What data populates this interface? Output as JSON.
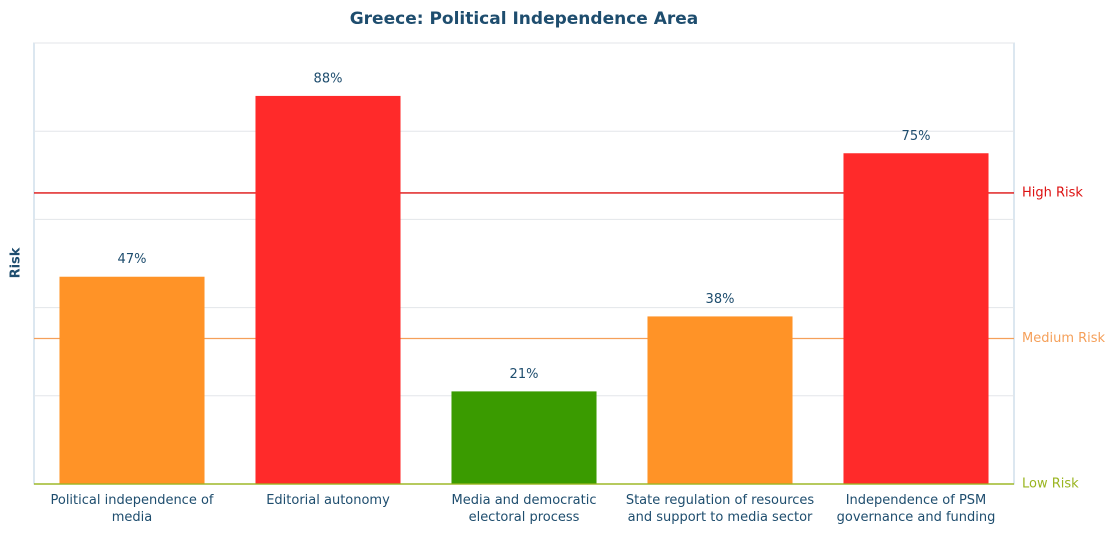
{
  "chart_data": {
    "type": "bar",
    "title": "Greece: Political Independence Area",
    "ylabel": "Risk",
    "categories": [
      "Political independence of media",
      "Editorial autonomy",
      "Media and democratic electoral process",
      "State regulation of resources and support to media sector",
      "Independence of PSM governance and funding"
    ],
    "values": [
      47,
      88,
      21,
      38,
      75
    ],
    "value_labels": [
      "47%",
      "88%",
      "21%",
      "38%",
      "75%"
    ],
    "colors": [
      "#ff9327",
      "#ff2a2a",
      "#3a9b00",
      "#ff9327",
      "#ff2a2a"
    ],
    "ylim": [
      0,
      100
    ],
    "yticks": [
      0,
      20,
      40,
      60,
      80,
      100
    ],
    "grid": true,
    "thresholds": [
      {
        "label": "High Risk",
        "value": 66,
        "color": "#dd1111"
      },
      {
        "label": "Medium Risk",
        "value": 33,
        "color": "#f5a05a"
      },
      {
        "label": "Low Risk",
        "value": 0,
        "color": "#9ab520"
      }
    ]
  }
}
